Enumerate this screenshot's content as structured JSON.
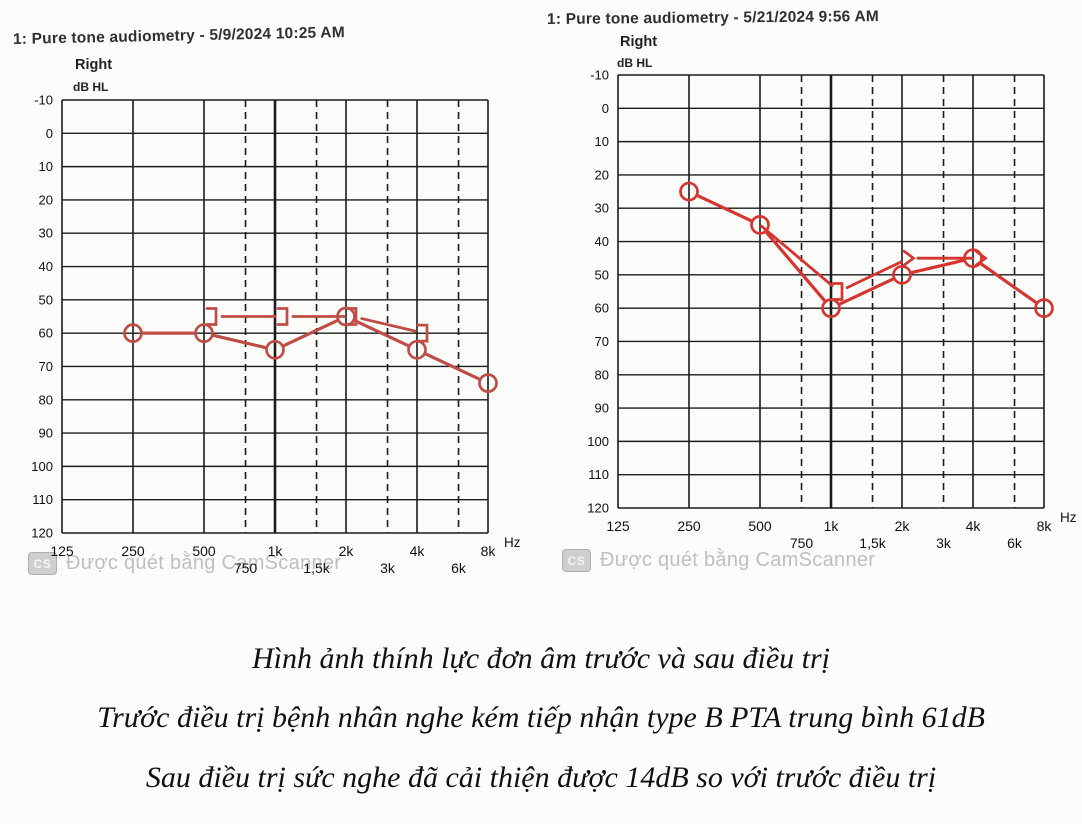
{
  "watermark": {
    "badge": "CS",
    "text": "Được quét bằng CamScanner"
  },
  "captions": [
    "Hình ảnh thính lực đơn âm trước và sau điều trị",
    "Trước điều trị bệnh nhân nghe kém tiếp nhận type B PTA trung bình 61dB",
    "Sau điều trị sức nghe đã cải thiện được 14dB so với trước điều trị"
  ],
  "chart_data": [
    {
      "type": "line",
      "title": "1: Pure tone audiometry - 5/9/2024 10:25 AM",
      "ear_label": "Right",
      "unit_label": "dB HL",
      "x_unit_label": "Hz",
      "color": "#bf4d46",
      "ylim": [
        -10,
        120
      ],
      "y_step": 10,
      "y_ticks": [
        "-10",
        "0",
        "10",
        "20",
        "30",
        "40",
        "50",
        "60",
        "70",
        "80",
        "90",
        "100",
        "110",
        "120"
      ],
      "x_octaves": {
        "values": [
          125,
          250,
          500,
          1000,
          2000,
          4000,
          8000
        ],
        "labels": [
          "125",
          "250",
          "500",
          "1k",
          "2k",
          "4k",
          "8k"
        ]
      },
      "x_inter": {
        "values": [
          750,
          1500,
          3000,
          6000
        ],
        "labels": [
          "750",
          "1,5k",
          "3k",
          "6k"
        ]
      },
      "grid": true,
      "series": [
        {
          "name": "bone-conduction",
          "marker": "bracket",
          "points": [
            {
              "f": 500,
              "db": 55,
              "sym": "]",
              "dx": 9
            },
            {
              "f": 1000,
              "db": 55,
              "sym": "]",
              "dx": 9
            },
            {
              "f": 2000,
              "db": 55,
              "sym": "]",
              "dx": 7
            },
            {
              "f": 4000,
              "db": 60,
              "sym": "]",
              "dx": 7
            }
          ]
        },
        {
          "name": "air-conduction-right",
          "marker": "circle",
          "points": [
            {
              "f": 250,
              "db": 60,
              "sym": "O",
              "dx": 0
            },
            {
              "f": 500,
              "db": 60,
              "sym": "O",
              "dx": 0
            },
            {
              "f": 1000,
              "db": 65,
              "sym": "O",
              "dx": 0
            },
            {
              "f": 2000,
              "db": 55,
              "sym": "O",
              "dx": 0
            },
            {
              "f": 4000,
              "db": 65,
              "sym": "O",
              "dx": 0
            },
            {
              "f": 8000,
              "db": 75,
              "sym": "O",
              "dx": 0
            }
          ]
        }
      ]
    },
    {
      "type": "line",
      "title": "1: Pure tone audiometry - 5/21/2024 9:56 AM",
      "ear_label": "Right",
      "unit_label": "dB HL",
      "x_unit_label": "Hz",
      "color": "#d6352f",
      "ylim": [
        -10,
        120
      ],
      "y_step": 10,
      "y_ticks": [
        "-10",
        "0",
        "10",
        "20",
        "30",
        "40",
        "50",
        "60",
        "70",
        "80",
        "90",
        "100",
        "110",
        "120"
      ],
      "x_octaves": {
        "values": [
          125,
          250,
          500,
          1000,
          2000,
          4000,
          8000
        ],
        "labels": [
          "125",
          "250",
          "500",
          "1k",
          "2k",
          "4k",
          "8k"
        ]
      },
      "x_inter": {
        "values": [
          750,
          1500,
          3000,
          6000
        ],
        "labels": [
          "750",
          "1,5k",
          "3k",
          "6k"
        ]
      },
      "grid": true,
      "series": [
        {
          "name": "bone-conduction",
          "marker": "bracket",
          "points": [
            {
              "f": 500,
              "db": 35,
              "sym": "none",
              "dx": 0
            },
            {
              "f": 1000,
              "db": 55,
              "sym": "]",
              "dx": 8
            },
            {
              "f": 2000,
              "db": 45,
              "sym": ">",
              "dx": 7
            },
            {
              "f": 4000,
              "db": 45,
              "sym": ">",
              "dx": 8
            }
          ]
        },
        {
          "name": "air-conduction-right",
          "marker": "circle",
          "points": [
            {
              "f": 250,
              "db": 25,
              "sym": "O",
              "dx": 0
            },
            {
              "f": 500,
              "db": 35,
              "sym": "O",
              "dx": 0
            },
            {
              "f": 1000,
              "db": 60,
              "sym": "O",
              "dx": 0
            },
            {
              "f": 2000,
              "db": 50,
              "sym": "O",
              "dx": 0
            },
            {
              "f": 4000,
              "db": 45,
              "sym": "O",
              "dx": 0
            },
            {
              "f": 8000,
              "db": 60,
              "sym": "O",
              "dx": 0
            }
          ]
        }
      ]
    }
  ]
}
